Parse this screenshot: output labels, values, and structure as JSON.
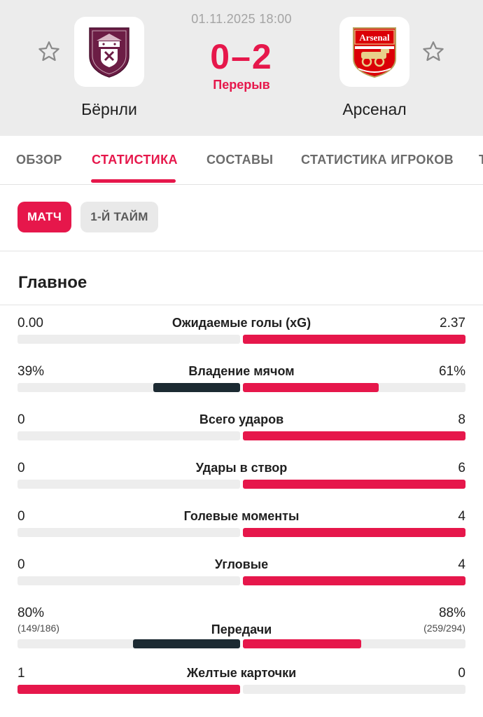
{
  "header": {
    "date": "01.11.2025 18:00",
    "score": "0–2",
    "status": "Перерыв",
    "home_team": "Бёрнли",
    "away_team": "Арсенал",
    "away_crest_text": "Arsenal"
  },
  "tabs": [
    {
      "label": "ОБЗОР",
      "active": false
    },
    {
      "label": "СТАТИСТИКА",
      "active": true
    },
    {
      "label": "СОСТАВЫ",
      "active": false
    },
    {
      "label": "СТАТИСТИКА ИГРОКОВ",
      "active": false
    },
    {
      "label": "Т",
      "active": false
    }
  ],
  "periods": [
    {
      "label": "МАТЧ",
      "active": true
    },
    {
      "label": "1-Й ТАЙМ",
      "active": false
    }
  ],
  "section_title": "Главное",
  "stats": [
    {
      "label": "Ожидаемые голы (xG)",
      "home": "0.00",
      "away": "2.37",
      "home_share": 0.0,
      "away_share": 1.0,
      "style": "winner"
    },
    {
      "label": "Владение мячом",
      "home": "39%",
      "away": "61%",
      "home_share": 0.39,
      "away_share": 0.61,
      "style": "split"
    },
    {
      "label": "Всего ударов",
      "home": "0",
      "away": "8",
      "home_share": 0.0,
      "away_share": 1.0,
      "style": "winner"
    },
    {
      "label": "Удары в створ",
      "home": "0",
      "away": "6",
      "home_share": 0.0,
      "away_share": 1.0,
      "style": "winner"
    },
    {
      "label": "Голевые моменты",
      "home": "0",
      "away": "4",
      "home_share": 0.0,
      "away_share": 1.0,
      "style": "winner"
    },
    {
      "label": "Угловые",
      "home": "0",
      "away": "4",
      "home_share": 0.0,
      "away_share": 1.0,
      "style": "winner"
    },
    {
      "label": "Передачи",
      "home": "80%",
      "away": "88%",
      "home_sub": "(149/186)",
      "away_sub": "(259/294)",
      "home_share": 0.48,
      "away_share": 0.53,
      "style": "split"
    },
    {
      "label": "Желтые карточки",
      "home": "1",
      "away": "0",
      "home_share": 1.0,
      "away_share": 0.0,
      "style": "winner"
    }
  ],
  "colors": {
    "accent": "#e6174b",
    "dark_bar": "#1c2a32",
    "track": "#ededed",
    "header_bg": "#ececec"
  }
}
